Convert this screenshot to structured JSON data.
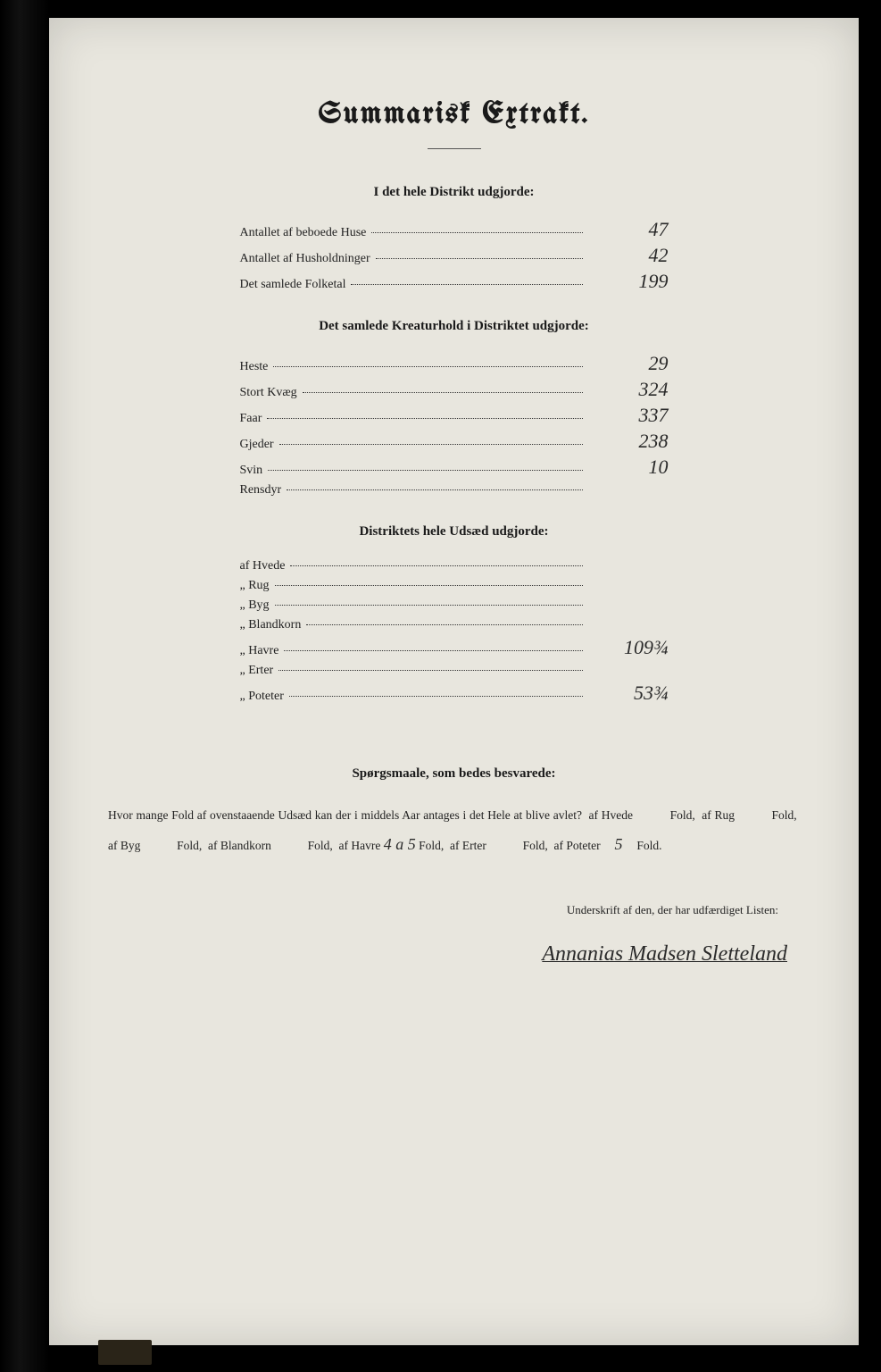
{
  "title": "Summarisk Extrakt.",
  "section1": {
    "heading": "I det hele Distrikt udgjorde:",
    "rows": [
      {
        "label": "Antallet af beboede Huse",
        "value": "47"
      },
      {
        "label": "Antallet af Husholdninger",
        "value": "42"
      },
      {
        "label": "Det samlede Folketal",
        "value": "199"
      }
    ]
  },
  "section2": {
    "heading": "Det samlede Kreaturhold i Distriktet udgjorde:",
    "rows": [
      {
        "label": "Heste",
        "value": "29"
      },
      {
        "label": "Stort Kvæg",
        "value": "324"
      },
      {
        "label": "Faar",
        "value": "337"
      },
      {
        "label": "Gjeder",
        "value": "238"
      },
      {
        "label": "Svin",
        "value": "10"
      },
      {
        "label": "Rensdyr",
        "value": ""
      }
    ]
  },
  "section3": {
    "heading": "Distriktets hele Udsæd udgjorde:",
    "rows": [
      {
        "label": "af Hvede",
        "value": ""
      },
      {
        "label": "„ Rug",
        "value": ""
      },
      {
        "label": "„ Byg",
        "value": ""
      },
      {
        "label": "„ Blandkorn",
        "value": ""
      },
      {
        "label": "„ Havre",
        "value": "109¾"
      },
      {
        "label": "„ Erter",
        "value": ""
      },
      {
        "label": "„ Poteter",
        "value": "53¾"
      }
    ]
  },
  "questions": {
    "heading": "Spørgsmaale, som bedes besvarede:",
    "intro": "Hvor mange Fold af ovenstaaende Udsæd kan der i middels Aar antages i det Hele at blive avlet?",
    "items": [
      {
        "pre": "af Hvede",
        "val": "",
        "suf": "Fold,"
      },
      {
        "pre": "af Rug",
        "val": "",
        "suf": "Fold,"
      },
      {
        "pre": "af Byg",
        "val": "",
        "suf": "Fold,"
      },
      {
        "pre": "af Blandkorn",
        "val": "",
        "suf": "Fold,"
      },
      {
        "pre": "af Havre",
        "val": "4 a 5",
        "suf": "Fold,"
      },
      {
        "pre": "af Erter",
        "val": "",
        "suf": "Fold,"
      },
      {
        "pre": "af Poteter",
        "val": "5",
        "suf": "Fold."
      }
    ]
  },
  "signature": {
    "label": "Underskrift af den, der har udfærdiget Listen:",
    "name": "Annanias Madsen Sletteland"
  },
  "colors": {
    "paper": "#e8e6de",
    "ink": "#1a1a1a",
    "handwriting": "#2a2a2a",
    "frame": "#000000"
  }
}
